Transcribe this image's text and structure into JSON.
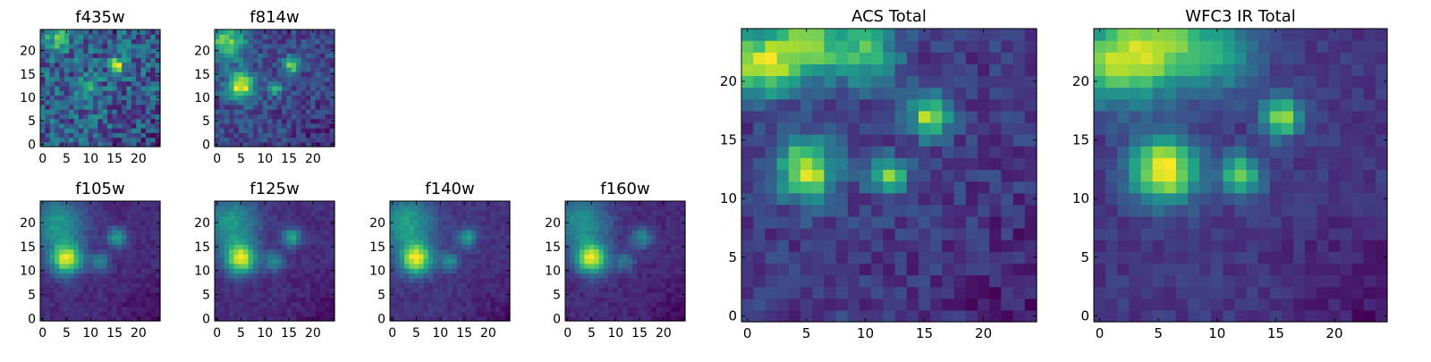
{
  "figure": {
    "colormap": "viridis",
    "colorscale_stops": [
      "#440154",
      "#482878",
      "#3e4989",
      "#31688e",
      "#26828e",
      "#1f9e89",
      "#35b779",
      "#6ece58",
      "#b5de2b",
      "#fde725"
    ]
  },
  "chart_data": [
    {
      "type": "heatmap",
      "id": "f435w",
      "title": "f435w",
      "xlabel": "",
      "ylabel": "",
      "grid_size": 25,
      "xlim": [
        0,
        24
      ],
      "ylim": [
        0,
        24
      ],
      "xticks": [
        0,
        5,
        10,
        15,
        20
      ],
      "yticks": [
        0,
        5,
        10,
        15,
        20
      ],
      "origin": "lower",
      "noise": 0.22,
      "base": 0.4,
      "sources": [
        {
          "x": 15.5,
          "y": 17,
          "amp": 0.6,
          "sigma": 1.1
        },
        {
          "x": 9,
          "y": 12,
          "amp": 0.25,
          "sigma": 1.8
        },
        {
          "x": 3,
          "y": 23,
          "amp": 0.35,
          "sigma": 2
        }
      ]
    },
    {
      "type": "heatmap",
      "id": "f814w",
      "title": "f814w",
      "xlabel": "",
      "ylabel": "",
      "grid_size": 25,
      "xlim": [
        0,
        24
      ],
      "ylim": [
        0,
        24
      ],
      "xticks": [
        0,
        5,
        10,
        15,
        20
      ],
      "yticks": [
        0,
        5,
        10,
        15,
        20
      ],
      "origin": "lower",
      "noise": 0.12,
      "base": 0.2,
      "sources": [
        {
          "x": 5,
          "y": 12.5,
          "amp": 0.75,
          "sigma": 2
        },
        {
          "x": 15.5,
          "y": 17,
          "amp": 0.6,
          "sigma": 1.2
        },
        {
          "x": 12,
          "y": 12,
          "amp": 0.4,
          "sigma": 1.2
        },
        {
          "x": 2,
          "y": 22,
          "amp": 0.5,
          "sigma": 3
        }
      ]
    },
    {
      "type": "heatmap",
      "id": "f105w",
      "title": "f105w",
      "xlabel": "",
      "ylabel": "",
      "grid_size": 25,
      "xlim": [
        0,
        24
      ],
      "ylim": [
        0,
        24
      ],
      "xticks": [
        0,
        5,
        10,
        15,
        20
      ],
      "yticks": [
        0,
        5,
        10,
        15,
        20
      ],
      "origin": "lower",
      "noise": 0.05,
      "base": 0.12,
      "sources": [
        {
          "x": 5,
          "y": 12.5,
          "amp": 0.85,
          "sigma": 2.3
        },
        {
          "x": 15.5,
          "y": 17,
          "amp": 0.5,
          "sigma": 1.4
        },
        {
          "x": 12,
          "y": 12,
          "amp": 0.35,
          "sigma": 1.4
        },
        {
          "x": 3,
          "y": 20,
          "amp": 0.45,
          "sigma": 4
        }
      ]
    },
    {
      "type": "heatmap",
      "id": "f125w",
      "title": "f125w",
      "xlabel": "",
      "ylabel": "",
      "grid_size": 25,
      "xlim": [
        0,
        24
      ],
      "ylim": [
        0,
        24
      ],
      "xticks": [
        0,
        5,
        10,
        15,
        20
      ],
      "yticks": [
        0,
        5,
        10,
        15,
        20
      ],
      "origin": "lower",
      "noise": 0.05,
      "base": 0.12,
      "sources": [
        {
          "x": 5,
          "y": 12.5,
          "amp": 0.85,
          "sigma": 2.3
        },
        {
          "x": 15.5,
          "y": 17,
          "amp": 0.5,
          "sigma": 1.4
        },
        {
          "x": 12,
          "y": 12,
          "amp": 0.38,
          "sigma": 1.4
        },
        {
          "x": 3,
          "y": 20,
          "amp": 0.45,
          "sigma": 4
        }
      ]
    },
    {
      "type": "heatmap",
      "id": "f140w",
      "title": "f140w",
      "xlabel": "",
      "ylabel": "",
      "grid_size": 25,
      "xlim": [
        0,
        24
      ],
      "ylim": [
        0,
        24
      ],
      "xticks": [
        0,
        5,
        10,
        15,
        20
      ],
      "yticks": [
        0,
        5,
        10,
        15,
        20
      ],
      "origin": "lower",
      "noise": 0.05,
      "base": 0.12,
      "sources": [
        {
          "x": 5,
          "y": 12.5,
          "amp": 0.85,
          "sigma": 2.3
        },
        {
          "x": 15.5,
          "y": 17,
          "amp": 0.45,
          "sigma": 1.4
        },
        {
          "x": 12,
          "y": 12,
          "amp": 0.35,
          "sigma": 1.4
        },
        {
          "x": 3,
          "y": 20,
          "amp": 0.45,
          "sigma": 4
        }
      ]
    },
    {
      "type": "heatmap",
      "id": "f160w",
      "title": "f160w",
      "xlabel": "",
      "ylabel": "",
      "grid_size": 25,
      "xlim": [
        0,
        24
      ],
      "ylim": [
        0,
        24
      ],
      "xticks": [
        0,
        5,
        10,
        15,
        20
      ],
      "yticks": [
        0,
        5,
        10,
        15,
        20
      ],
      "origin": "lower",
      "noise": 0.05,
      "base": 0.12,
      "sources": [
        {
          "x": 5,
          "y": 12.5,
          "amp": 0.9,
          "sigma": 2.3
        },
        {
          "x": 15.5,
          "y": 17,
          "amp": 0.4,
          "sigma": 1.5
        },
        {
          "x": 12,
          "y": 12,
          "amp": 0.3,
          "sigma": 1.5
        },
        {
          "x": 3,
          "y": 20,
          "amp": 0.45,
          "sigma": 4
        }
      ]
    },
    {
      "type": "heatmap",
      "id": "acs_total",
      "title": "ACS Total",
      "xlabel": "",
      "ylabel": "",
      "grid_size": 25,
      "xlim": [
        0,
        24
      ],
      "ylim": [
        0,
        24
      ],
      "xticks": [
        0,
        5,
        10,
        15,
        20
      ],
      "yticks": [
        0,
        5,
        10,
        15,
        20
      ],
      "origin": "lower",
      "noise": 0.1,
      "base": 0.22,
      "sources": [
        {
          "x": 5,
          "y": 12.5,
          "amp": 0.75,
          "sigma": 1.8
        },
        {
          "x": 15.5,
          "y": 17,
          "amp": 0.7,
          "sigma": 1.2
        },
        {
          "x": 12,
          "y": 12,
          "amp": 0.6,
          "sigma": 1.1
        },
        {
          "x": 1,
          "y": 21.5,
          "amp": 0.7,
          "sigma": 2
        },
        {
          "x": 5,
          "y": 23,
          "amp": 0.6,
          "sigma": 2
        },
        {
          "x": 10,
          "y": 22.5,
          "amp": 0.5,
          "sigma": 2
        }
      ]
    },
    {
      "type": "heatmap",
      "id": "wfc3_ir_total",
      "title": "WFC3 IR Total",
      "xlabel": "",
      "ylabel": "",
      "grid_size": 25,
      "xlim": [
        0,
        24
      ],
      "ylim": [
        0,
        24
      ],
      "xticks": [
        0,
        5,
        10,
        15,
        20
      ],
      "yticks": [
        0,
        5,
        10,
        15,
        20
      ],
      "origin": "lower",
      "noise": 0.06,
      "base": 0.12,
      "sources": [
        {
          "x": 5.5,
          "y": 12.5,
          "amp": 0.85,
          "sigma": 2
        },
        {
          "x": 15.5,
          "y": 17,
          "amp": 0.7,
          "sigma": 1.2
        },
        {
          "x": 12,
          "y": 12,
          "amp": 0.65,
          "sigma": 1.2
        },
        {
          "x": 1,
          "y": 21.5,
          "amp": 0.6,
          "sigma": 2.5
        },
        {
          "x": 5,
          "y": 23,
          "amp": 0.55,
          "sigma": 2.5
        },
        {
          "x": 10,
          "y": 22.5,
          "amp": 0.4,
          "sigma": 2.5
        }
      ]
    }
  ]
}
